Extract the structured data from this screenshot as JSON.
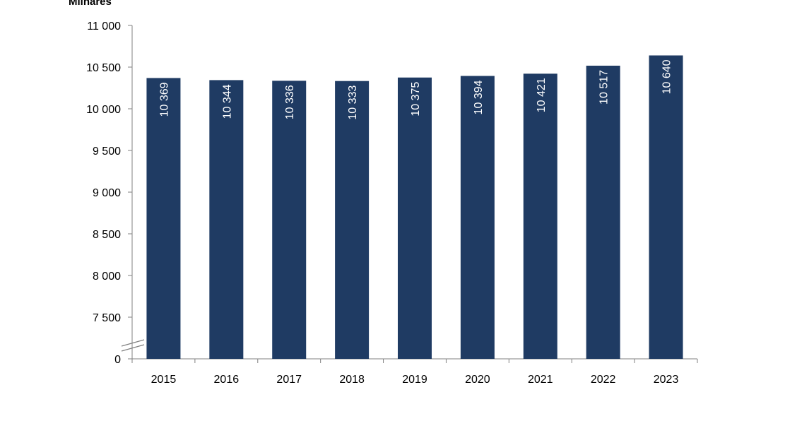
{
  "chart_data": {
    "type": "bar",
    "unit_label": "Milhares",
    "categories": [
      "2015",
      "2016",
      "2017",
      "2018",
      "2019",
      "2020",
      "2021",
      "2022",
      "2023"
    ],
    "values": [
      10369,
      10344,
      10336,
      10333,
      10375,
      10394,
      10421,
      10517,
      10640
    ],
    "value_labels": [
      "10 369",
      "10 344",
      "10 336",
      "10 333",
      "10 375",
      "10 394",
      "10 421",
      "10 517",
      "10 640"
    ],
    "y_ticks": [
      {
        "value": 11000,
        "label": "11 000"
      },
      {
        "value": 10500,
        "label": "10 500"
      },
      {
        "value": 10000,
        "label": "10 000"
      },
      {
        "value": 9500,
        "label": "9 500"
      },
      {
        "value": 9000,
        "label": "9 000"
      },
      {
        "value": 8500,
        "label": "8 500"
      },
      {
        "value": 8000,
        "label": "8 000"
      },
      {
        "value": 7500,
        "label": "7 500"
      },
      {
        "value": 0,
        "label": "0"
      }
    ],
    "ylim": [
      7000,
      11000
    ],
    "axis_break": true,
    "grid": false,
    "bar_color": "#1f3b63",
    "label_color": "#ffffff"
  }
}
